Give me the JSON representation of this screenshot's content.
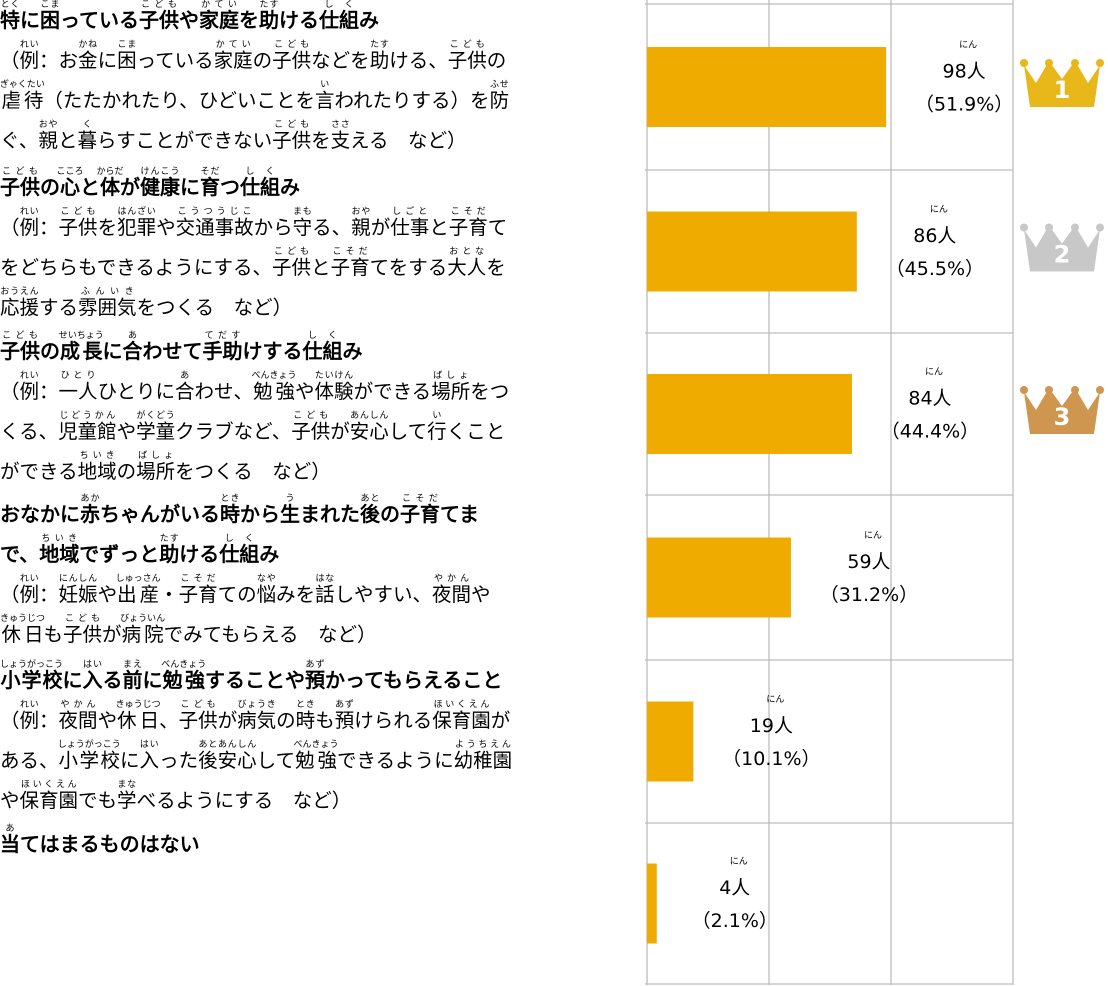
{
  "chart_data": {
    "type": "bar",
    "categories": [
      [
        [
          [
            "特",
            "とく"
          ],
          "に",
          [
            "困",
            "こま"
          ],
          "っている",
          [
            "子供",
            "こども"
          ],
          "や",
          [
            "家庭",
            "かてい"
          ],
          "を",
          [
            "助",
            "たす"
          ],
          "ける",
          [
            "仕組",
            "しく"
          ],
          "み"
        ]
      ],
      [
        [
          [
            "子供",
            "こども"
          ],
          "の",
          [
            "心",
            "こころ"
          ],
          "と",
          [
            "体",
            "からだ"
          ],
          "が",
          [
            "健康",
            "けんこう"
          ],
          "に",
          [
            "育",
            "そだ"
          ],
          "つ",
          [
            "仕組",
            "しく"
          ],
          "み"
        ]
      ],
      [
        [
          [
            "子供",
            "こども"
          ],
          "の",
          [
            "成長",
            "せいちょう"
          ],
          "に",
          [
            "合",
            "あ"
          ],
          "わせて",
          [
            "手助",
            "てだす"
          ],
          "けする",
          [
            "仕組",
            "しく"
          ],
          "み"
        ]
      ],
      [
        [
          "おなかに",
          [
            "赤",
            "あか"
          ],
          "ちゃんがいる",
          [
            "時",
            "とき"
          ],
          "から",
          [
            "生",
            "う"
          ],
          "まれた",
          [
            "後",
            "あと"
          ],
          "の",
          [
            "子育",
            "こそだ"
          ],
          "てま"
        ],
        [
          "で、",
          [
            "地域",
            "ちいき"
          ],
          "でずっと",
          [
            "助",
            "たす"
          ],
          "ける",
          [
            "仕組",
            "しく"
          ],
          "み"
        ]
      ],
      [
        [
          [
            "小学校",
            "しょうがっこう"
          ],
          "に",
          [
            "入",
            "はい"
          ],
          "る",
          [
            "前",
            "まえ"
          ],
          "に",
          [
            "勉強",
            "べんきょう"
          ],
          "することや",
          [
            "預",
            "あず"
          ],
          "かってもらえること"
        ]
      ],
      [
        [
          [
            "当",
            "あ"
          ],
          "てはまるものはない"
        ]
      ]
    ],
    "examples": [
      [
        [
          "（",
          [
            "例",
            "れい"
          ],
          "：お",
          [
            "金",
            "かね"
          ],
          "に",
          [
            "困",
            "こま"
          ],
          "っている",
          [
            "家庭",
            "かてい"
          ],
          "の",
          [
            "子供",
            "こども"
          ],
          "などを",
          [
            "助",
            "たす"
          ],
          "ける、",
          [
            "子供",
            "こども"
          ],
          "の"
        ],
        [
          [
            "虐待",
            "ぎゃくたい"
          ],
          "（たたかれたり、ひどいことを",
          [
            "言",
            "い"
          ],
          "われたりする）を",
          [
            "防",
            "ふせ"
          ]
        ],
        [
          "ぐ、",
          [
            "親",
            "おや"
          ],
          "と",
          [
            "暮",
            "く"
          ],
          "らすことができない",
          [
            "子供",
            "こども"
          ],
          "を",
          [
            "支",
            "ささ"
          ],
          "える　など）"
        ]
      ],
      [
        [
          "（",
          [
            "例",
            "れい"
          ],
          "：",
          [
            "子供",
            "こども"
          ],
          "を",
          [
            "犯罪",
            "はんざい"
          ],
          "や",
          [
            "交通事故",
            "こうつうじこ"
          ],
          "から",
          [
            "守",
            "まも"
          ],
          "る、",
          [
            "親",
            "おや"
          ],
          "が",
          [
            "仕事",
            "しごと"
          ],
          "と",
          [
            "子育",
            "こそだ"
          ],
          "て"
        ],
        [
          "をどちらもできるようにする、",
          [
            "子供",
            "こども"
          ],
          "と",
          [
            "子育",
            "こそだ"
          ],
          "てをする",
          [
            "大人",
            "おとな"
          ],
          "を"
        ],
        [
          [
            "応援",
            "おうえん"
          ],
          "する",
          [
            "雰囲気",
            "ふんいき"
          ],
          "をつくる　など）"
        ]
      ],
      [
        [
          "（",
          [
            "例",
            "れい"
          ],
          "：",
          [
            "一人",
            "ひとり"
          ],
          "ひとりに",
          [
            "合",
            "あ"
          ],
          "わせ、",
          [
            "勉強",
            "べんきょう"
          ],
          "や",
          [
            "体験",
            "たいけん"
          ],
          "ができる",
          [
            "場所",
            "ばしょ"
          ],
          "をつ"
        ],
        [
          "くる、",
          [
            "児童館",
            "じどうかん"
          ],
          "や",
          [
            "学童",
            "がくどう"
          ],
          "クラブなど、",
          [
            "子供",
            "こども"
          ],
          "が",
          [
            "安心",
            "あんしん"
          ],
          "して",
          [
            "行",
            "い"
          ],
          "くこと"
        ],
        [
          "ができる",
          [
            "地域",
            "ちいき"
          ],
          "の",
          [
            "場所",
            "ばしょ"
          ],
          "をつくる　など）"
        ]
      ],
      [
        [
          "（",
          [
            "例",
            "れい"
          ],
          "：",
          [
            "妊娠",
            "にんしん"
          ],
          "や",
          [
            "出産",
            "しゅっさん"
          ],
          "・",
          [
            "子育",
            "こそだ"
          ],
          "ての",
          [
            "悩",
            "なや"
          ],
          "みを",
          [
            "話",
            "はな"
          ],
          "しやすい、",
          [
            "夜間",
            "やかん"
          ],
          "や"
        ],
        [
          [
            "休日",
            "きゅうじつ"
          ],
          "も",
          [
            "子供",
            "こども"
          ],
          "が",
          [
            "病院",
            "びょういん"
          ],
          "でみてもらえる　など）"
        ]
      ],
      [
        [
          "（",
          [
            "例",
            "れい"
          ],
          "：",
          [
            "夜間",
            "やかん"
          ],
          "や",
          [
            "休日",
            "きゅうじつ"
          ],
          "、",
          [
            "子供",
            "こども"
          ],
          "が",
          [
            "病気",
            "びょうき"
          ],
          "の",
          [
            "時",
            "とき"
          ],
          "も",
          [
            "預",
            "あず"
          ],
          "けられる",
          [
            "保育園",
            "ほいくえん"
          ],
          "が"
        ],
        [
          "ある、",
          [
            "小学校",
            "しょうがっこう"
          ],
          "に",
          [
            "入",
            "はい"
          ],
          "った",
          [
            "後安心",
            "あとあんしん"
          ],
          "して",
          [
            "勉強",
            "べんきょう"
          ],
          "できるように",
          [
            "幼稚園",
            "ようちえん"
          ]
        ],
        [
          "や",
          [
            "保育園",
            "ほいくえん"
          ],
          "でも",
          [
            "学",
            "まな"
          ],
          "べるようにする　など）"
        ]
      ],
      []
    ],
    "values": [
      98,
      86,
      84,
      59,
      19,
      4
    ],
    "value_labels": [
      "98人",
      "86人",
      "84人",
      "59人",
      "19人",
      "4人"
    ],
    "value_label_ruby": "にん",
    "percent_labels": [
      "（51.9%）",
      "（45.5%）",
      "（44.4%）",
      "（31.2%）",
      "（10.1%）",
      "（2.1%）"
    ],
    "color": "#f0ab00",
    "xlim": [
      0,
      150
    ],
    "gridlines": [
      0,
      50,
      100,
      150
    ],
    "ranks": [
      1,
      2,
      3
    ],
    "crown_colors": [
      "#e8b71a",
      "#c8c8c8",
      "#cf9650"
    ]
  }
}
